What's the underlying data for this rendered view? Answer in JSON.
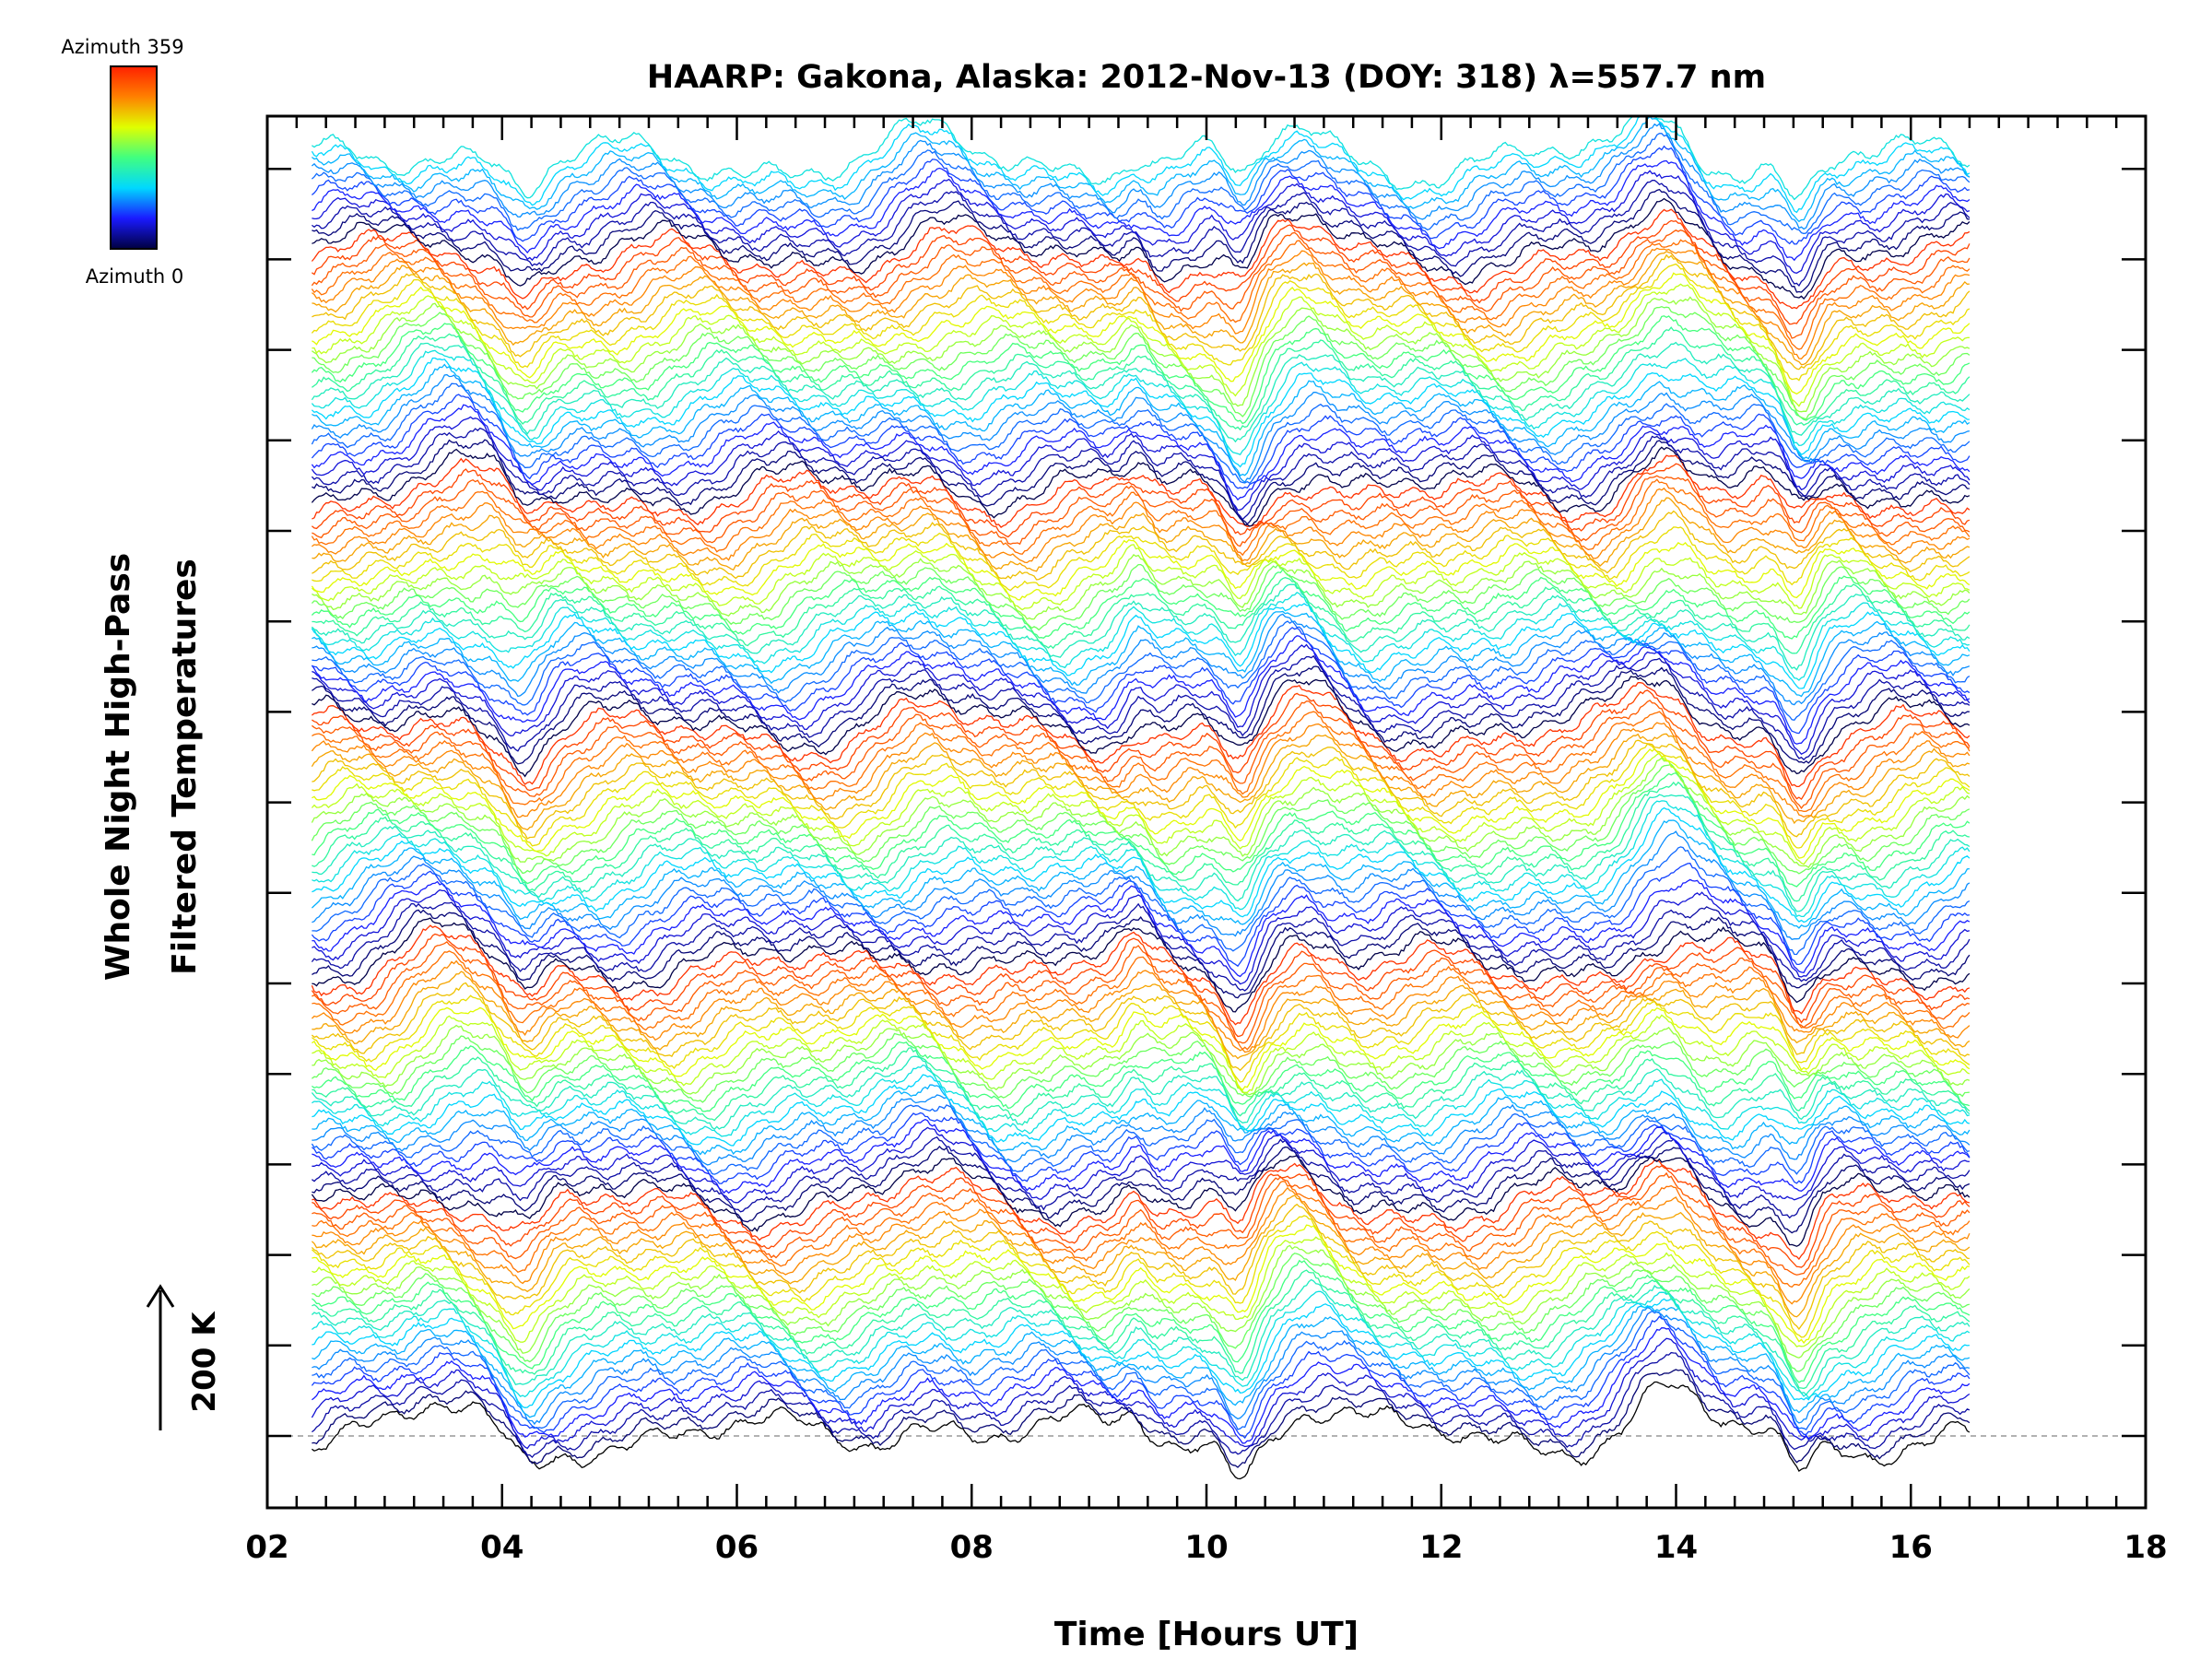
{
  "chart_data": {
    "type": "line",
    "title": "HAARP: Gakona,  Alaska: 2012-Nov-13 (DOY: 318) λ=557.7 nm",
    "xlabel": "Time [Hours UT]",
    "ylabel_line1": "Whole Night High-Pass",
    "ylabel_line2": "Filtered Temperatures",
    "xlim": [
      2,
      18
    ],
    "x_ticks": [
      "02",
      "04",
      "06",
      "08",
      "10",
      "12",
      "14",
      "16",
      "18"
    ],
    "x_tick_values": [
      2,
      4,
      6,
      8,
      10,
      12,
      14,
      16,
      18
    ],
    "x_start": 2.38,
    "x_end": 16.5,
    "trace_count": 141,
    "scale_bar_label": "200 K",
    "grid": false,
    "colorbar": {
      "top_label": "Azimuth 359",
      "bottom_label": "Azimuth 0",
      "colors": [
        "#000040",
        "#1a1aff",
        "#00d8ff",
        "#40ff80",
        "#e0ff00",
        "#ff8000",
        "#ff2000"
      ]
    }
  }
}
